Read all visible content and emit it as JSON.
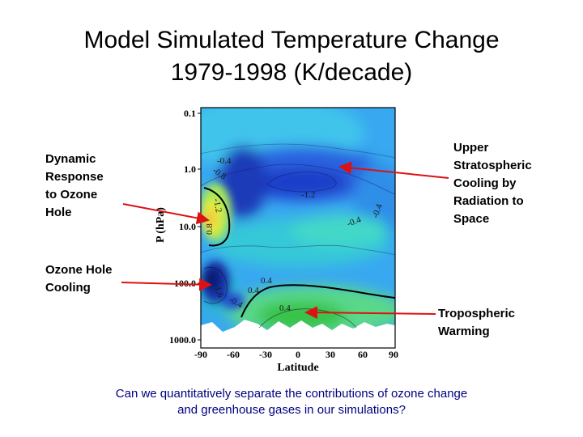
{
  "title": "Model Simulated Temperature Change\n1979-1998 (K/decade)",
  "annotations": {
    "dynamic": "Dynamic\nResponse\nto Ozone\nHole",
    "ozone_cooling": "Ozone Hole\nCooling",
    "upper_strat": "Upper\nStratospheric\nCooling by\nRadiation to\nSpace",
    "tropo": "Tropospheric\nWarming"
  },
  "question": "Can we quantitatively separate the contributions of ozone change\nand greenhouse gases in our simulations?",
  "plot": {
    "ylabel": "P (hPa)",
    "xlabel": "Latitude",
    "yticks": [
      "0.1",
      "1.0",
      "10.0",
      "100.0",
      "1000.0"
    ],
    "xticks": [
      "-90",
      "-60",
      "-30",
      "0",
      "30",
      "60",
      "90"
    ],
    "contour_labels": [
      "-0.8",
      "-0.4",
      "-1.2",
      "-1.2",
      "-0.4",
      "-0.4",
      "0.8",
      "-1.6",
      "-0.4",
      "0.4",
      "0.4",
      "0.4"
    ]
  },
  "colors": {
    "arrow": "#dd1111",
    "question_text": "#000080"
  }
}
